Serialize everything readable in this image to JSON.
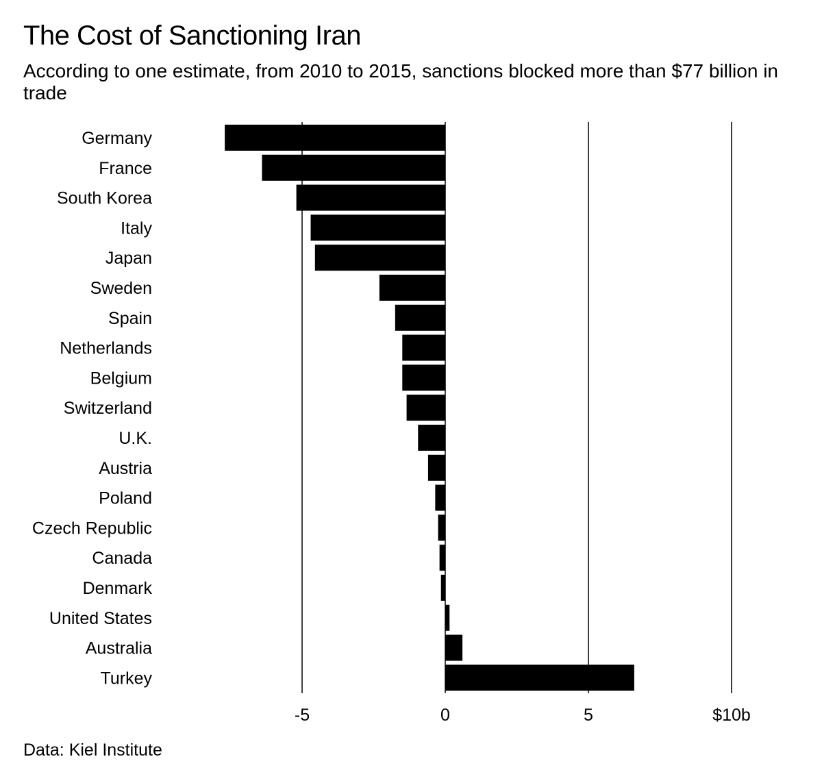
{
  "header": {
    "title": "The Cost of Sanctioning Iran",
    "subtitle": "According to one estimate, from 2010 to 2015, sanctions blocked more than $77 billion in trade"
  },
  "footer": {
    "source": "Data: Kiel Institute"
  },
  "chart_data": {
    "type": "bar",
    "orientation": "horizontal",
    "categories": [
      "Germany",
      "France",
      "South Korea",
      "Italy",
      "Japan",
      "Sweden",
      "Spain",
      "Netherlands",
      "Belgium",
      "Switzerland",
      "U.K.",
      "Austria",
      "Poland",
      "Czech Republic",
      "Canada",
      "Denmark",
      "United States",
      "Australia",
      "Turkey"
    ],
    "values": [
      -7.7,
      -6.4,
      -5.2,
      -4.7,
      -4.55,
      -2.3,
      -1.75,
      -1.5,
      -1.5,
      -1.35,
      -0.95,
      -0.6,
      -0.35,
      -0.25,
      -0.2,
      -0.15,
      0.15,
      0.6,
      6.6
    ],
    "xlim": [
      -7.8,
      10
    ],
    "xticks": [
      -5,
      0,
      5,
      10
    ],
    "xtick_labels": [
      "-5",
      "0",
      "5",
      "$10b"
    ],
    "grid": true,
    "bar_color": "#000000",
    "grid_color": "#000000"
  }
}
